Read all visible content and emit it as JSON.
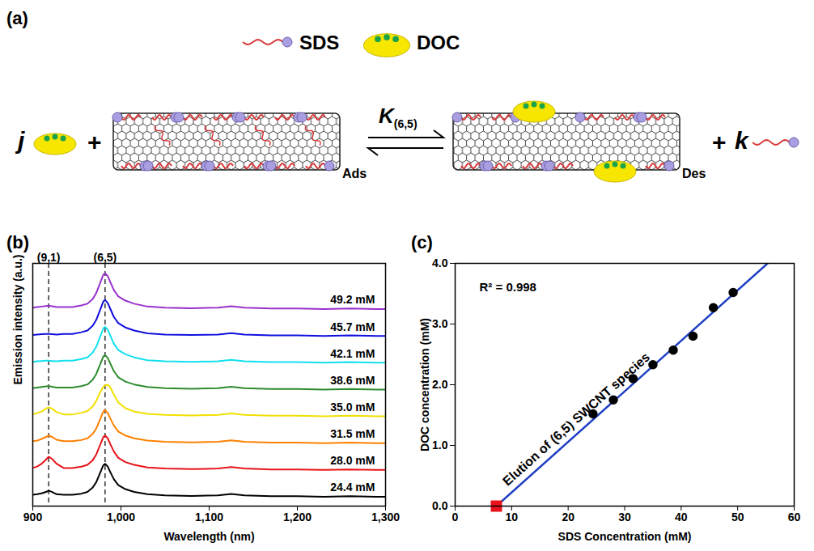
{
  "diagram": {
    "panel": "(a)",
    "legend": [
      {
        "label": "SDS"
      },
      {
        "label": "DOC"
      }
    ],
    "reaction": {
      "left_coefficient": "j",
      "right_coefficient": "k",
      "operator": "+",
      "left_state": "Ads",
      "right_state": "Des",
      "constant": {
        "label": "K",
        "subscript": "(6,5)"
      }
    }
  },
  "chart_data": [
    {
      "panel": "(b)",
      "type": "line",
      "x_label": "Wavelength (nm)",
      "y_label": "Emission intensity (a.u.)",
      "xlim": [
        900,
        1300
      ],
      "xticks": [
        900,
        1000,
        1100,
        1200,
        1300
      ],
      "ylim": [
        0,
        8.6
      ],
      "yticks": [],
      "tick_labels": "x",
      "x": [
        900,
        905,
        910,
        915,
        918,
        922,
        927,
        935,
        945,
        955,
        962,
        968,
        972,
        976,
        980,
        982,
        985,
        988,
        992,
        997,
        1005,
        1015,
        1030,
        1050,
        1080,
        1110,
        1125,
        1140,
        1170,
        1200,
        1230,
        1260,
        1290,
        1300
      ],
      "series": [
        {
          "name": "24.4 mM",
          "color": "#000000",
          "values": [
            0.4,
            0.42,
            0.45,
            0.5,
            0.55,
            0.5,
            0.42,
            0.4,
            0.4,
            0.44,
            0.5,
            0.66,
            0.85,
            1.15,
            1.45,
            1.5,
            1.4,
            1.2,
            0.95,
            0.74,
            0.6,
            0.5,
            0.42,
            0.38,
            0.36,
            0.38,
            0.43,
            0.38,
            0.35,
            0.35,
            0.33,
            0.35,
            0.33,
            0.33
          ]
        },
        {
          "name": "28.0 mM",
          "color": "#e8141b",
          "values": [
            1.35,
            1.4,
            1.5,
            1.65,
            1.75,
            1.67,
            1.5,
            1.35,
            1.35,
            1.4,
            1.46,
            1.63,
            1.83,
            2.14,
            2.45,
            2.5,
            2.4,
            2.19,
            1.93,
            1.71,
            1.56,
            1.46,
            1.37,
            1.33,
            1.31,
            1.33,
            1.38,
            1.33,
            1.3,
            1.3,
            1.28,
            1.3,
            1.28,
            1.28
          ]
        },
        {
          "name": "31.5 mM",
          "color": "#ff8000",
          "values": [
            2.3,
            2.32,
            2.38,
            2.45,
            2.5,
            2.45,
            2.35,
            2.3,
            2.3,
            2.34,
            2.4,
            2.56,
            2.75,
            3.05,
            3.35,
            3.4,
            3.3,
            3.1,
            2.85,
            2.64,
            2.5,
            2.4,
            2.32,
            2.28,
            2.26,
            2.28,
            2.33,
            2.28,
            2.25,
            2.25,
            2.23,
            2.25,
            2.23,
            2.23
          ]
        },
        {
          "name": "35.0 mM",
          "color": "#f0e000",
          "values": [
            3.25,
            3.3,
            3.35,
            3.45,
            3.5,
            3.45,
            3.33,
            3.25,
            3.25,
            3.3,
            3.37,
            3.53,
            3.73,
            4.0,
            4.23,
            4.28,
            4.3,
            4.2,
            3.95,
            3.67,
            3.47,
            3.35,
            3.27,
            3.23,
            3.21,
            3.23,
            3.28,
            3.23,
            3.2,
            3.2,
            3.18,
            3.2,
            3.18,
            3.18
          ]
        },
        {
          "name": "38.6 mM",
          "color": "#2e8b2e",
          "values": [
            4.18,
            4.2,
            4.22,
            4.24,
            4.25,
            4.23,
            4.2,
            4.2,
            4.2,
            4.25,
            4.31,
            4.48,
            4.68,
            4.99,
            5.3,
            5.35,
            5.25,
            5.04,
            4.78,
            4.56,
            4.41,
            4.31,
            4.22,
            4.18,
            4.16,
            4.18,
            4.23,
            4.18,
            4.15,
            4.15,
            4.13,
            4.15,
            4.13,
            4.13
          ]
        },
        {
          "name": "42.1 mM",
          "color": "#11e0f0",
          "values": [
            5.11,
            5.13,
            5.14,
            5.15,
            5.15,
            5.14,
            5.13,
            5.15,
            5.15,
            5.21,
            5.27,
            5.44,
            5.65,
            5.97,
            6.3,
            6.35,
            6.25,
            6.03,
            5.75,
            5.53,
            5.38,
            5.27,
            5.17,
            5.13,
            5.11,
            5.13,
            5.18,
            5.13,
            5.1,
            5.1,
            5.08,
            5.1,
            5.08,
            5.08
          ]
        },
        {
          "name": "45.7 mM",
          "color": "#1010e0",
          "values": [
            6.06,
            6.08,
            6.09,
            6.1,
            6.1,
            6.09,
            6.08,
            6.1,
            6.1,
            6.16,
            6.22,
            6.39,
            6.6,
            6.92,
            7.25,
            7.3,
            7.2,
            6.98,
            6.7,
            6.48,
            6.33,
            6.22,
            6.12,
            6.08,
            6.06,
            6.08,
            6.13,
            6.08,
            6.05,
            6.05,
            6.03,
            6.05,
            6.03,
            6.03
          ]
        },
        {
          "name": "49.2 mM",
          "color": "#9932cc",
          "values": [
            7.03,
            7.05,
            7.07,
            7.09,
            7.1,
            7.08,
            7.05,
            7.05,
            7.05,
            7.11,
            7.17,
            7.34,
            7.55,
            7.87,
            8.2,
            8.25,
            8.15,
            7.93,
            7.65,
            7.43,
            7.28,
            7.17,
            7.07,
            7.03,
            7.01,
            7.03,
            7.08,
            7.03,
            7.0,
            7.0,
            6.98,
            7.0,
            6.98,
            6.98
          ]
        }
      ],
      "annotations": [
        {
          "text": "(9,1)",
          "x": 918,
          "line_style": "dashed"
        },
        {
          "text": "(6,5)",
          "x": 982,
          "line_style": "dashed"
        }
      ]
    },
    {
      "panel": "(c)",
      "type": "scatter",
      "x_label": "SDS Concentration (mM)",
      "y_label": "DOC concentration (mM)",
      "xlim": [
        0,
        60
      ],
      "xticks": [
        0,
        10,
        20,
        30,
        40,
        50,
        60
      ],
      "ylim": [
        0,
        4
      ],
      "yticks": [
        0,
        1,
        2,
        3,
        4
      ],
      "series": [
        {
          "type": "line",
          "color": "#1f3fc4",
          "x": [
            7.3,
            55.3
          ],
          "values": [
            0,
            4
          ]
        },
        {
          "type": "scatter",
          "color": "#000000",
          "marker": "circle",
          "x": [
            24.4,
            28.0,
            31.5,
            35.0,
            38.6,
            42.1,
            45.7,
            49.2
          ],
          "values": [
            1.52,
            1.75,
            2.1,
            2.33,
            2.57,
            2.8,
            3.27,
            3.52
          ]
        },
        {
          "type": "scatter",
          "color": "#e8121b",
          "marker": "square",
          "x": [
            7.3
          ],
          "values": [
            0
          ]
        }
      ],
      "annotations": [
        {
          "text": "R² = 0.998"
        },
        {
          "text": "Elution of (6,5) SWCNT species"
        }
      ]
    }
  ]
}
